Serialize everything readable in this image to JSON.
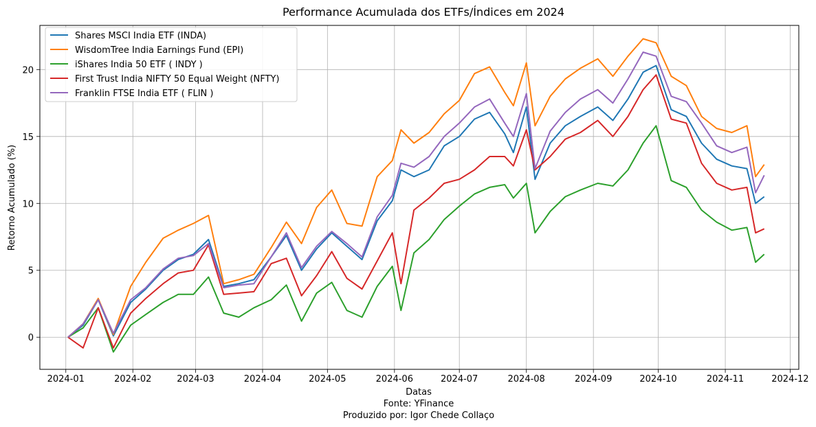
{
  "chart_data": {
    "type": "line",
    "title": "Performance Acumulada dos ETFs/Índices em 2024",
    "xlabel": "Datas",
    "ylabel": "Retorno Acumulado (%)",
    "captions": [
      "Fonte: YFinance",
      "Produzido por: Igor Chede Collaço"
    ],
    "x_ticks": [
      "2024-01",
      "2024-02",
      "2024-03",
      "2024-04",
      "2024-05",
      "2024-06",
      "2024-07",
      "2024-08",
      "2024-09",
      "2024-10",
      "2024-11",
      "2024-12"
    ],
    "y_ticks": [
      "0",
      "5",
      "10",
      "15",
      "20"
    ],
    "ylim": [
      -2.4,
      23.3
    ],
    "xlim": [
      "2023-12-20",
      "2024-12-05"
    ],
    "grid": true,
    "legend": "upper-left",
    "x": [
      "2024-01-02",
      "2024-01-09",
      "2024-01-16",
      "2024-01-23",
      "2024-01-31",
      "2024-02-07",
      "2024-02-15",
      "2024-02-22",
      "2024-02-29",
      "2024-03-07",
      "2024-03-14",
      "2024-03-21",
      "2024-03-28",
      "2024-04-05",
      "2024-04-12",
      "2024-04-19",
      "2024-04-26",
      "2024-05-03",
      "2024-05-10",
      "2024-05-17",
      "2024-05-24",
      "2024-05-31",
      "2024-06-04",
      "2024-06-10",
      "2024-06-17",
      "2024-06-24",
      "2024-07-01",
      "2024-07-08",
      "2024-07-15",
      "2024-07-22",
      "2024-07-26",
      "2024-08-01",
      "2024-08-05",
      "2024-08-12",
      "2024-08-19",
      "2024-08-26",
      "2024-09-03",
      "2024-09-10",
      "2024-09-17",
      "2024-09-24",
      "2024-09-30",
      "2024-10-07",
      "2024-10-14",
      "2024-10-21",
      "2024-10-28",
      "2024-11-04",
      "2024-11-11",
      "2024-11-15",
      "2024-11-19"
    ],
    "series": [
      {
        "name": "Shares MSCI India ETF (INDA)",
        "color": "#1f77b4",
        "values": [
          0.0,
          0.9,
          2.8,
          0.1,
          2.6,
          3.6,
          5.0,
          5.8,
          6.2,
          7.3,
          3.8,
          4.0,
          4.3,
          6.0,
          7.6,
          5.0,
          6.6,
          7.8,
          6.8,
          5.8,
          8.7,
          10.2,
          12.5,
          12.0,
          12.5,
          14.3,
          15.0,
          16.3,
          16.8,
          15.2,
          13.8,
          17.2,
          11.8,
          14.5,
          15.8,
          16.5,
          17.2,
          16.2,
          17.8,
          19.8,
          20.3,
          17.0,
          16.5,
          14.5,
          13.3,
          12.8,
          12.6,
          10.0,
          10.5
        ]
      },
      {
        "name": "WisdomTree India Earnings Fund (EPI)",
        "color": "#ff7f0e",
        "values": [
          0.0,
          1.0,
          2.9,
          0.2,
          3.8,
          5.6,
          7.4,
          8.0,
          8.5,
          9.1,
          4.0,
          4.3,
          4.7,
          6.7,
          8.6,
          7.0,
          9.7,
          11.0,
          8.5,
          8.3,
          12.0,
          13.2,
          15.5,
          14.5,
          15.3,
          16.7,
          17.7,
          19.7,
          20.2,
          18.3,
          17.3,
          20.5,
          15.8,
          18.0,
          19.3,
          20.1,
          20.8,
          19.5,
          21.0,
          22.3,
          22.0,
          19.5,
          18.8,
          16.5,
          15.6,
          15.3,
          15.8,
          12.0,
          12.9
        ]
      },
      {
        "name": "iShares India 50 ETF ( INDY )",
        "color": "#2ca02c",
        "values": [
          0.0,
          0.7,
          2.2,
          -1.1,
          0.9,
          1.7,
          2.6,
          3.2,
          3.2,
          4.5,
          1.8,
          1.5,
          2.2,
          2.8,
          3.9,
          1.2,
          3.3,
          4.1,
          2.0,
          1.5,
          3.8,
          5.3,
          2.0,
          6.3,
          7.3,
          8.8,
          9.8,
          10.7,
          11.2,
          11.4,
          10.4,
          11.5,
          7.8,
          9.4,
          10.5,
          11.0,
          11.5,
          11.3,
          12.5,
          14.5,
          15.8,
          11.7,
          11.2,
          9.5,
          8.6,
          8.0,
          8.2,
          5.6,
          6.2
        ]
      },
      {
        "name": "First Trust India NIFTY 50 Equal Weight (NFTY)",
        "color": "#d62728",
        "values": [
          0.0,
          -0.8,
          2.2,
          -0.8,
          1.8,
          2.9,
          4.0,
          4.8,
          5.0,
          6.9,
          3.2,
          3.3,
          3.4,
          5.5,
          5.9,
          3.1,
          4.6,
          6.4,
          4.4,
          3.6,
          5.7,
          7.8,
          4.0,
          9.5,
          10.4,
          11.5,
          11.8,
          12.5,
          13.5,
          13.5,
          12.8,
          15.5,
          12.5,
          13.5,
          14.8,
          15.3,
          16.2,
          15.0,
          16.5,
          18.5,
          19.6,
          16.3,
          16.0,
          13.0,
          11.5,
          11.0,
          11.2,
          7.8,
          8.1
        ]
      },
      {
        "name": "Franklin FTSE India ETF ( FLIN )",
        "color": "#9467bd",
        "values": [
          0.0,
          1.0,
          2.8,
          0.3,
          2.8,
          3.7,
          5.1,
          5.9,
          6.1,
          7.0,
          3.7,
          3.9,
          4.0,
          6.0,
          7.8,
          5.2,
          6.8,
          7.9,
          7.0,
          6.0,
          9.0,
          10.6,
          13.0,
          12.7,
          13.5,
          15.0,
          16.0,
          17.2,
          17.8,
          16.0,
          15.0,
          18.2,
          12.6,
          15.4,
          16.8,
          17.8,
          18.5,
          17.5,
          19.3,
          21.3,
          21.0,
          18.0,
          17.6,
          16.0,
          14.3,
          13.8,
          14.2,
          10.8,
          12.1
        ]
      }
    ]
  }
}
